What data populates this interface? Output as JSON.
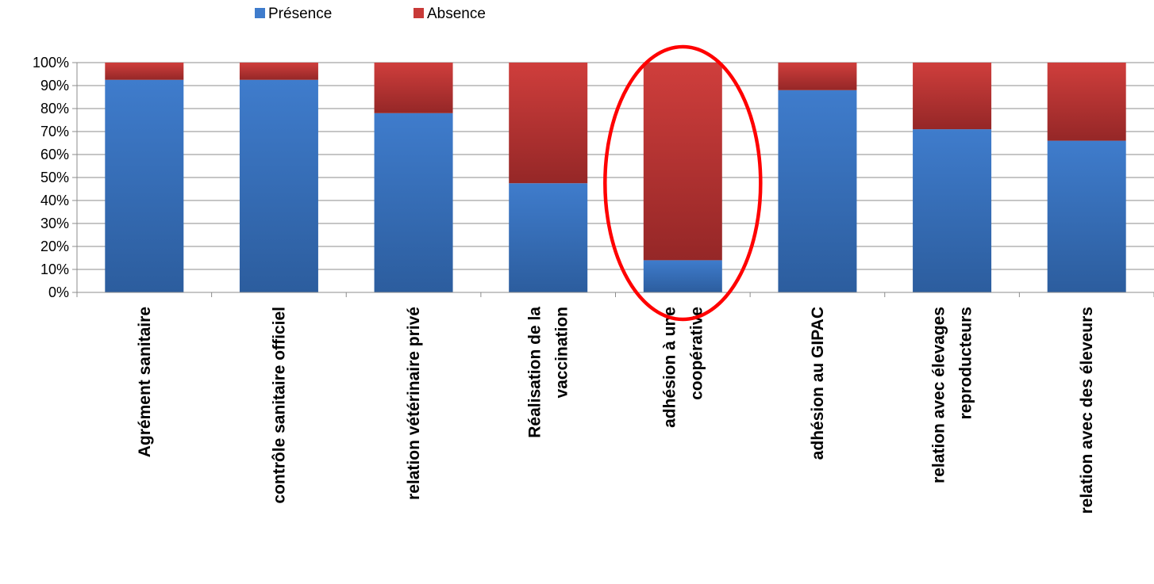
{
  "chart_data": {
    "type": "bar",
    "stacked": true,
    "percent_stacked": true,
    "categories": [
      [
        "Agrément sanitaire"
      ],
      [
        "contrôle sanitaire officiel"
      ],
      [
        "relation vétérinaire privé"
      ],
      [
        "Réalisation de la",
        "vaccination"
      ],
      [
        "adhésion à une",
        "coopérative"
      ],
      [
        "adhésion au GIPAC"
      ],
      [
        "relation avec élevages",
        "reproducteurs"
      ],
      [
        "relation avec des éleveurs"
      ]
    ],
    "series": [
      {
        "name": "Présence",
        "color": "#3f7ccc",
        "values": [
          92.5,
          92.5,
          78,
          47.5,
          14,
          88,
          71,
          66
        ]
      },
      {
        "name": "Absence",
        "color": "#c83a38",
        "values": [
          7.5,
          7.5,
          22,
          52.5,
          86,
          12,
          29,
          34
        ]
      }
    ],
    "ylim": [
      0,
      100
    ],
    "yticks": [
      "0%",
      "10%",
      "20%",
      "30%",
      "40%",
      "50%",
      "60%",
      "70%",
      "80%",
      "90%",
      "100%"
    ],
    "grid": true,
    "legend": "top-left",
    "highlight": {
      "category_index": 4,
      "shape": "ellipse",
      "color": "#ff0000"
    }
  }
}
